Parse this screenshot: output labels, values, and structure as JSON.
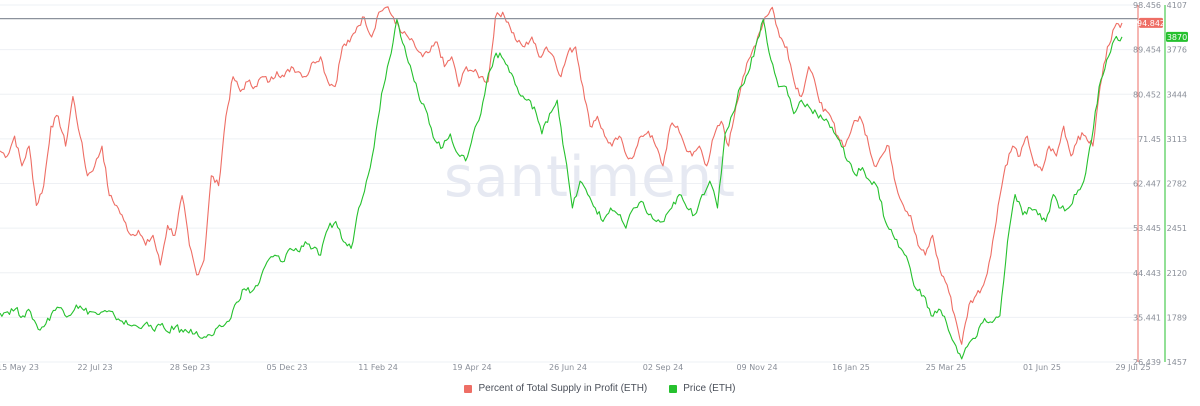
{
  "chart_data": {
    "type": "line",
    "watermark": "santiment",
    "x_ticks": [
      "15 May 23",
      "22 Jul 23",
      "28 Sep 23",
      "05 Dec 23",
      "11 Feb 24",
      "19 Apr 24",
      "26 Jun 24",
      "02 Sep 24",
      "09 Nov 24",
      "16 Jan 25",
      "25 Mar 25",
      "01 Jun 25",
      "29 Jul 25"
    ],
    "y_left_ticks": [
      "98.456",
      "89.454",
      "80.452",
      "71.45",
      "62.447",
      "53.445",
      "44.443",
      "35.441",
      "26.439"
    ],
    "y_right_ticks": [
      "4107",
      "3776",
      "3444",
      "3113",
      "2782",
      "2451",
      "2120",
      "1789",
      "1457"
    ],
    "y_left_range": [
      26.439,
      98.456
    ],
    "y_right_range": [
      1457,
      4107
    ],
    "reference_line": 95.7,
    "last_values": {
      "profit": "94.842",
      "price": "3870"
    },
    "colors": {
      "profit": "#ee6e65",
      "price": "#26c12e",
      "grid": "#eef0f4",
      "reference": "#8c929c"
    },
    "series": [
      {
        "name": "Percent of Total Supply in Profit (ETH)",
        "axis": "left",
        "values": [
          69,
          68,
          72,
          66,
          70,
          58,
          62,
          74,
          76,
          70,
          80,
          72,
          64,
          66,
          70,
          60,
          58,
          55,
          52,
          53,
          50,
          52,
          46,
          54,
          52,
          60,
          50,
          44,
          47,
          64,
          62,
          76,
          84,
          81,
          83,
          82,
          84,
          83,
          85,
          84,
          86,
          85,
          84,
          87,
          88,
          83,
          82,
          90,
          91,
          94,
          96,
          92,
          97,
          98,
          96,
          93,
          92,
          90,
          88,
          89,
          91,
          86,
          88,
          82,
          86,
          85,
          84,
          83,
          96,
          97,
          94,
          91,
          90,
          92,
          88,
          90,
          88,
          84,
          89,
          90,
          82,
          74,
          76,
          72,
          70,
          72,
          68,
          68,
          72,
          73,
          70,
          66,
          74,
          74,
          70,
          68,
          70,
          66,
          72,
          75,
          70,
          78,
          84,
          88,
          92,
          96,
          98,
          92,
          90,
          83,
          80,
          86,
          82,
          77,
          76,
          72,
          70,
          74,
          76,
          72,
          66,
          68,
          70,
          62,
          58,
          56,
          50,
          48,
          52,
          45,
          42,
          36,
          30,
          38,
          40,
          42,
          48,
          58,
          66,
          70,
          68,
          72,
          66,
          65,
          70,
          68,
          74,
          68,
          72,
          72,
          70,
          82,
          90,
          94,
          94.842
        ],
        "values_extent": "approximate readout"
      },
      {
        "name": "Price (ETH)",
        "axis": "right",
        "values": [
          1820,
          1830,
          1850,
          1800,
          1830,
          1700,
          1740,
          1840,
          1860,
          1800,
          1880,
          1840,
          1830,
          1810,
          1830,
          1800,
          1760,
          1730,
          1720,
          1740,
          1700,
          1730,
          1680,
          1720,
          1680,
          1700,
          1650,
          1640,
          1660,
          1720,
          1760,
          1900,
          2000,
          1980,
          2050,
          2200,
          2250,
          2200,
          2300,
          2280,
          2350,
          2300,
          2250,
          2450,
          2500,
          2350,
          2300,
          2600,
          2800,
          3050,
          3450,
          3700,
          4000,
          3800,
          3600,
          3400,
          3300,
          3100,
          3050,
          3150,
          3000,
          2950,
          3150,
          3300,
          3600,
          3750,
          3700,
          3600,
          3450,
          3400,
          3350,
          3150,
          3300,
          3400,
          3000,
          2600,
          2800,
          2700,
          2600,
          2500,
          2600,
          2550,
          2450,
          2600,
          2650,
          2550,
          2500,
          2500,
          2600,
          2700,
          2600,
          2550,
          2700,
          2800,
          2600,
          3150,
          3300,
          3500,
          3600,
          3800,
          4000,
          3700,
          3500,
          3500,
          3300,
          3400,
          3350,
          3300,
          3250,
          3200,
          3100,
          2950,
          2850,
          2900,
          2800,
          2750,
          2500,
          2400,
          2300,
          2200,
          2000,
          1950,
          1800,
          1850,
          1750,
          1600,
          1480,
          1600,
          1650,
          1780,
          1750,
          1800,
          2350,
          2700,
          2550,
          2600,
          2550,
          2500,
          2700,
          2600,
          2600,
          2700,
          2800,
          3100,
          3500,
          3700,
          3850,
          3870
        ]
      }
    ],
    "legend": [
      {
        "label": "Percent of Total Supply in Profit (ETH)",
        "color": "#ee6e65"
      },
      {
        "label": "Price (ETH)",
        "color": "#26c12e"
      }
    ]
  }
}
